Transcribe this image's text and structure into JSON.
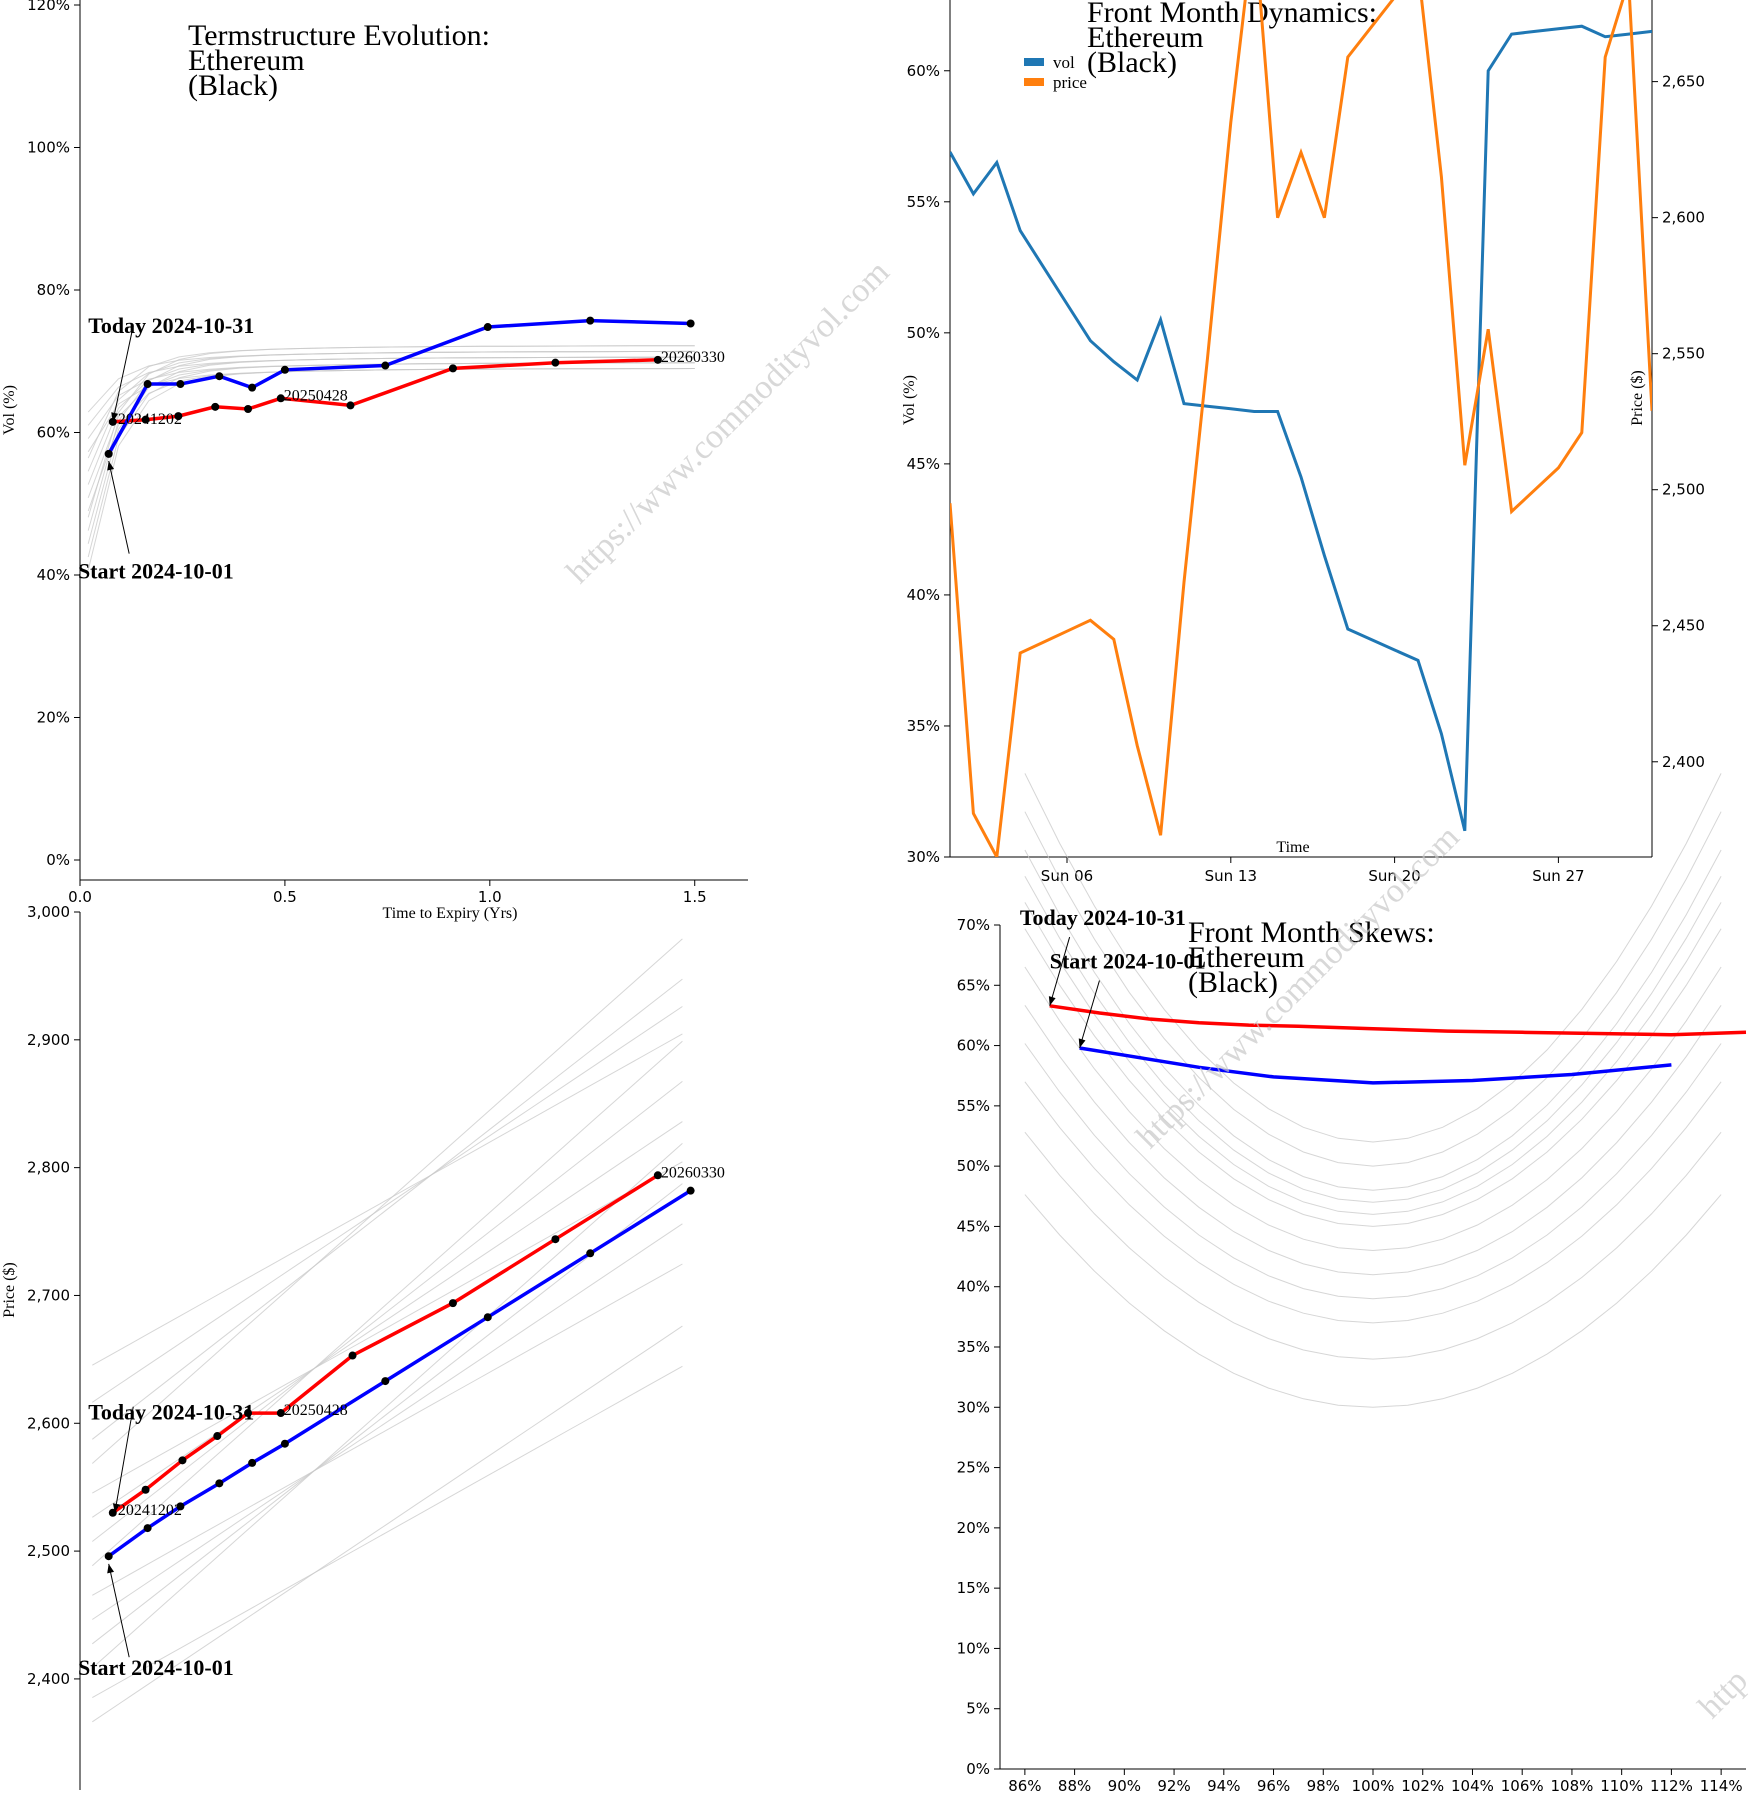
{
  "colors": {
    "today": "#ff0000",
    "start": "#0000ff",
    "vol": "#1f77b4",
    "price": "#ff7f0e",
    "history": "#c8c8c8"
  },
  "watermark": "https://www.commodityvol.com",
  "watermark_fragment": "http",
  "chart_data": [
    {
      "id": "termstructure",
      "type": "line",
      "title": [
        "Termstructure Evolution:",
        "Ethereum",
        "(Black)"
      ],
      "xlabel": "Time to Expiry (Yrs)",
      "ylabel": "Vol (%)",
      "xlim": [
        0,
        1.63
      ],
      "ylim": [
        0,
        1.2
      ],
      "xticks": [
        {
          "v": 0,
          "l": "0.0"
        },
        {
          "v": 0.5,
          "l": "0.5"
        },
        {
          "v": 1.0,
          "l": "1.0"
        },
        {
          "v": 1.5,
          "l": "1.5"
        }
      ],
      "yticks": [
        {
          "v": 0,
          "l": "0%"
        },
        {
          "v": 0.2,
          "l": "20%"
        },
        {
          "v": 0.4,
          "l": "40%"
        },
        {
          "v": 0.6,
          "l": "60%"
        },
        {
          "v": 0.8,
          "l": "80%"
        },
        {
          "v": 1.0,
          "l": "100%"
        },
        {
          "v": 1.2,
          "l": "120%"
        }
      ],
      "series": [
        {
          "role": "today",
          "x": [
            0.08,
            0.16,
            0.24,
            0.33,
            0.41,
            0.49,
            0.66,
            0.91,
            1.16,
            1.41
          ],
          "y": [
            0.615,
            0.618,
            0.623,
            0.636,
            0.633,
            0.648,
            0.638,
            0.69,
            0.698,
            0.702
          ]
        },
        {
          "role": "start",
          "x": [
            0.07,
            0.165,
            0.245,
            0.34,
            0.42,
            0.5,
            0.745,
            0.995,
            1.245,
            1.49
          ],
          "y": [
            0.57,
            0.668,
            0.668,
            0.679,
            0.663,
            0.688,
            0.694,
            0.748,
            0.757,
            0.753
          ]
        }
      ],
      "annotations": [
        {
          "text": "Today 2024-10-31",
          "target_x": 0.08,
          "target_y": 0.615,
          "text_x": 0.02,
          "text_y": 0.74,
          "anchor_x": 0.13,
          "anchor_y": 0.75
        },
        {
          "text": "Start 2024-10-01",
          "target_x": 0.07,
          "target_y": 0.56,
          "text_x": -0.005,
          "text_y": 0.395,
          "anchor_x": 0.12,
          "anchor_y": 0.43
        }
      ],
      "curve_labels": [
        {
          "text": "20241202",
          "x": 0.085,
          "y": 0.615
        },
        {
          "text": "20250428",
          "x": 0.49,
          "y": 0.648
        },
        {
          "text": "20260330",
          "x": 1.41,
          "y": 0.702
        }
      ]
    },
    {
      "id": "front-month",
      "type": "line",
      "title": [
        "Front Month Dynamics:",
        "Ethereum",
        "(Black)"
      ],
      "xlabel": "Time",
      "ylabel": "Vol (%)",
      "y2label": "Price ($)",
      "xlim": [
        0,
        30
      ],
      "ylim": [
        0.3,
        0.627
      ],
      "y2lim": [
        2365,
        2680
      ],
      "xticks": [
        {
          "v": 5,
          "l": "Sun 06"
        },
        {
          "v": 12,
          "l": "Sun 13"
        },
        {
          "v": 19,
          "l": "Sun 20"
        },
        {
          "v": 26,
          "l": "Sun 27"
        }
      ],
      "yticks": [
        {
          "v": 0.3,
          "l": "30%"
        },
        {
          "v": 0.35,
          "l": "35%"
        },
        {
          "v": 0.4,
          "l": "40%"
        },
        {
          "v": 0.45,
          "l": "45%"
        },
        {
          "v": 0.5,
          "l": "50%"
        },
        {
          "v": 0.55,
          "l": "55%"
        },
        {
          "v": 0.6,
          "l": "60%"
        }
      ],
      "y2ticks": [
        {
          "v": 2400,
          "l": "2,400"
        },
        {
          "v": 2450,
          "l": "2,450"
        },
        {
          "v": 2500,
          "l": "2,500"
        },
        {
          "v": 2550,
          "l": "2,550"
        },
        {
          "v": 2600,
          "l": "2,600"
        },
        {
          "v": 2650,
          "l": "2,650"
        }
      ],
      "legend": [
        {
          "label": "vol",
          "role": "vol"
        },
        {
          "label": "price",
          "role": "price"
        }
      ],
      "legend_position": "top-left",
      "series": [
        {
          "name": "vol",
          "role": "vol",
          "axis": "left",
          "x": [
            0,
            1,
            2,
            3,
            4,
            5,
            6,
            7,
            8,
            9,
            10,
            11,
            12,
            13,
            14,
            15,
            16,
            17,
            18,
            19,
            20,
            21,
            22,
            23,
            24,
            25,
            26,
            27,
            28,
            29,
            30
          ],
          "y": [
            0.569,
            0.553,
            0.565,
            0.539,
            0.525,
            0.511,
            0.497,
            0.489,
            0.482,
            0.505,
            0.473,
            0.472,
            0.471,
            0.47,
            0.47,
            0.445,
            0.415,
            0.387,
            0.383,
            0.379,
            0.375,
            0.347,
            0.31,
            0.6,
            0.614,
            0.615,
            0.616,
            0.617,
            0.613,
            0.614,
            0.615
          ]
        },
        {
          "name": "price",
          "role": "price",
          "axis": "right",
          "x": [
            0,
            1,
            2,
            3,
            4,
            5,
            6,
            7,
            8,
            9,
            10,
            11,
            12,
            13,
            14,
            15,
            16,
            17,
            18,
            19,
            20,
            21,
            22,
            23,
            24,
            25,
            26,
            27,
            28,
            29,
            30
          ],
          "y": [
            2495,
            2381,
            2365,
            2440,
            2444,
            2448,
            2452,
            2445,
            2406,
            2373,
            2466,
            2548,
            2635,
            2708,
            2600,
            2624,
            2600,
            2659,
            2670,
            2681,
            2692,
            2615,
            2509,
            2559,
            2492,
            2500,
            2508,
            2521,
            2659,
            2687,
            2529
          ]
        }
      ]
    },
    {
      "id": "futures-curve",
      "type": "line",
      "title": [],
      "xlabel": "",
      "ylabel": "Price ($)",
      "xlim": [
        0,
        1.63
      ],
      "ylim": [
        2335,
        3000
      ],
      "yticks": [
        {
          "v": 2400,
          "l": "2,400"
        },
        {
          "v": 2500,
          "l": "2,500"
        },
        {
          "v": 2600,
          "l": "2,600"
        },
        {
          "v": 2700,
          "l": "2,700"
        },
        {
          "v": 2800,
          "l": "2,800"
        },
        {
          "v": 2900,
          "l": "2,900"
        },
        {
          "v": 3000,
          "l": "3,000"
        }
      ],
      "series": [
        {
          "role": "today",
          "x": [
            0.08,
            0.16,
            0.25,
            0.335,
            0.41,
            0.49,
            0.665,
            0.91,
            1.16,
            1.41
          ],
          "y": [
            2530,
            2548,
            2571,
            2590,
            2608,
            2608,
            2653,
            2694,
            2744,
            2794
          ]
        },
        {
          "role": "start",
          "x": [
            0.07,
            0.165,
            0.245,
            0.34,
            0.42,
            0.5,
            0.745,
            0.995,
            1.245,
            1.49
          ],
          "y": [
            2496,
            2518,
            2535,
            2553,
            2569,
            2584,
            2633,
            2683,
            2733,
            2782
          ]
        }
      ],
      "annotations": [
        {
          "text": "Today 2024-10-31",
          "target_x": 0.085,
          "target_y": 2530,
          "text_x": 0.02,
          "text_y": 2603,
          "anchor_x": 0.13,
          "anchor_y": 2613
        },
        {
          "text": "Start 2024-10-01",
          "target_x": 0.07,
          "target_y": 2490,
          "text_x": -0.005,
          "text_y": 2403,
          "anchor_x": 0.12,
          "anchor_y": 2417
        }
      ],
      "curve_labels": [
        {
          "text": "20241202",
          "x": 0.085,
          "y": 2530
        },
        {
          "text": "20250428",
          "x": 0.49,
          "y": 2608
        },
        {
          "text": "20260330",
          "x": 1.41,
          "y": 2794
        }
      ]
    },
    {
      "id": "skews",
      "type": "line",
      "title": [
        "Front Month Skews:",
        "Ethereum",
        "(Black)"
      ],
      "xlabel": "",
      "ylabel": "",
      "xlim": [
        0.85,
        1.15
      ],
      "ylim": [
        0,
        0.7
      ],
      "xticks": [
        {
          "v": 0.86,
          "l": "86%"
        },
        {
          "v": 0.88,
          "l": "88%"
        },
        {
          "v": 0.9,
          "l": "90%"
        },
        {
          "v": 0.92,
          "l": "92%"
        },
        {
          "v": 0.94,
          "l": "94%"
        },
        {
          "v": 0.96,
          "l": "96%"
        },
        {
          "v": 0.98,
          "l": "98%"
        },
        {
          "v": 1.0,
          "l": "100%"
        },
        {
          "v": 1.02,
          "l": "102%"
        },
        {
          "v": 1.04,
          "l": "104%"
        },
        {
          "v": 1.06,
          "l": "106%"
        },
        {
          "v": 1.08,
          "l": "108%"
        },
        {
          "v": 1.1,
          "l": "110%"
        },
        {
          "v": 1.12,
          "l": "112%"
        },
        {
          "v": 1.14,
          "l": "114%"
        }
      ],
      "yticks": [
        {
          "v": 0.0,
          "l": "0%"
        },
        {
          "v": 0.05,
          "l": "5%"
        },
        {
          "v": 0.1,
          "l": "10%"
        },
        {
          "v": 0.15,
          "l": "15%"
        },
        {
          "v": 0.2,
          "l": "20%"
        },
        {
          "v": 0.25,
          "l": "25%"
        },
        {
          "v": 0.3,
          "l": "30%"
        },
        {
          "v": 0.35,
          "l": "35%"
        },
        {
          "v": 0.4,
          "l": "40%"
        },
        {
          "v": 0.45,
          "l": "45%"
        },
        {
          "v": 0.5,
          "l": "50%"
        },
        {
          "v": 0.55,
          "l": "55%"
        },
        {
          "v": 0.6,
          "l": "60%"
        },
        {
          "v": 0.65,
          "l": "65%"
        },
        {
          "v": 0.7,
          "l": "70%"
        }
      ],
      "series": [
        {
          "role": "today",
          "x": [
            0.87,
            0.89,
            0.91,
            0.93,
            0.95,
            0.97,
            1.0,
            1.03,
            1.06,
            1.09,
            1.12,
            1.15
          ],
          "y": [
            0.633,
            0.627,
            0.622,
            0.619,
            0.617,
            0.616,
            0.614,
            0.612,
            0.611,
            0.61,
            0.609,
            0.611
          ]
        },
        {
          "role": "start",
          "x": [
            0.882,
            0.9,
            0.93,
            0.96,
            1.0,
            1.04,
            1.08,
            1.12
          ],
          "y": [
            0.598,
            0.592,
            0.582,
            0.574,
            0.569,
            0.571,
            0.576,
            0.584
          ]
        }
      ],
      "annotations": [
        {
          "text": "Today 2024-10-31",
          "target_x": 0.87,
          "target_y": 0.633,
          "text_x": 0.858,
          "text_y": 0.7,
          "anchor_x": 0.878,
          "anchor_y": 0.69
        },
        {
          "text": "Start 2024-10-01",
          "target_x": 0.882,
          "target_y": 0.598,
          "text_x": 0.87,
          "text_y": 0.664,
          "anchor_x": 0.89,
          "anchor_y": 0.654
        }
      ]
    }
  ]
}
